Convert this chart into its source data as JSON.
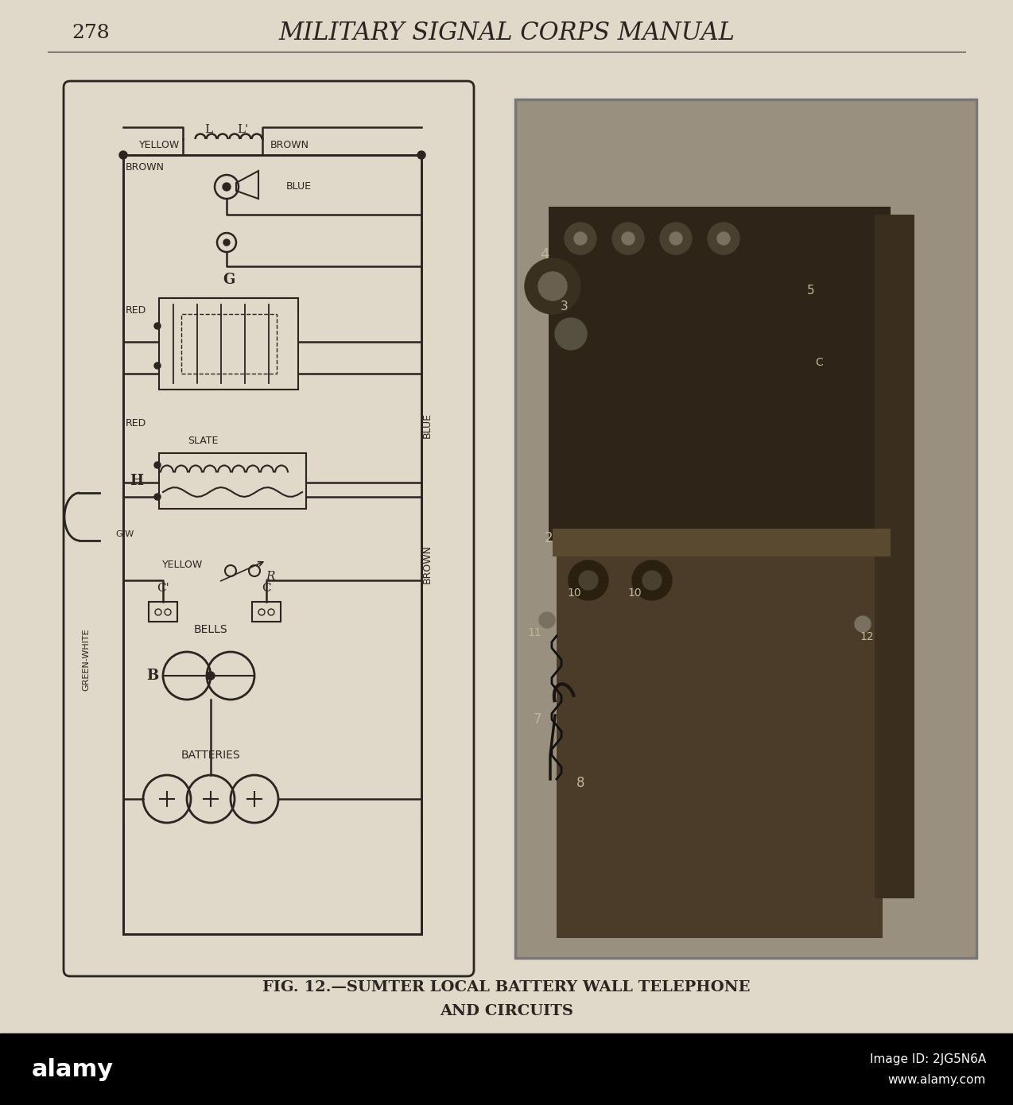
{
  "page_bg": "#e0d8c8",
  "header_text": "MILITARY SIGNAL CORPS MANUAL",
  "page_number": "278",
  "caption_line1": "FIG. 12.—SUMTER LOCAL BATTERY WALL TELEPHONE",
  "caption_line2": "AND CIRCUITS",
  "header_fontsize": 22,
  "page_num_fontsize": 18,
  "caption_fontsize": 14,
  "text_color": "#2a2520",
  "diagram_color": "#2a2520"
}
